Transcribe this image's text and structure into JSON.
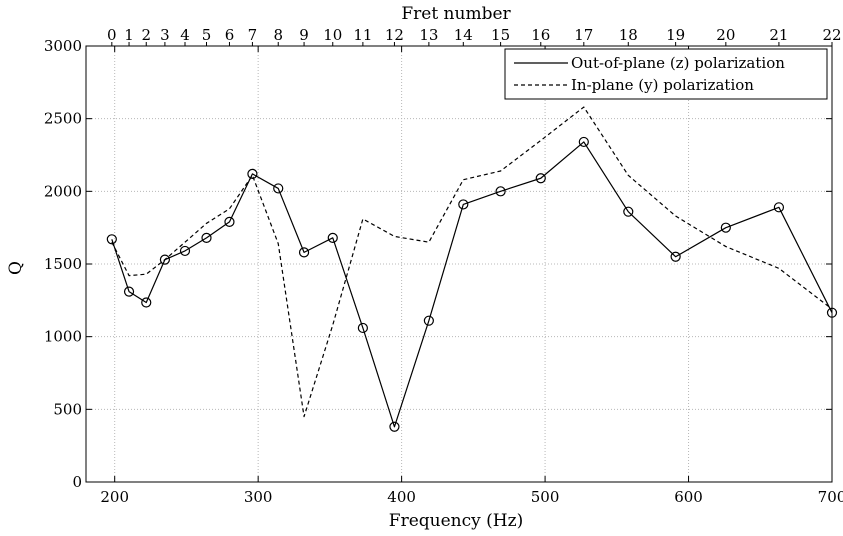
{
  "chart_data": {
    "type": "line",
    "xlabel": "Frequency (Hz)",
    "ylabel": "Q",
    "top_xlabel": "Fret number",
    "xlim": [
      180,
      700
    ],
    "ylim": [
      0,
      3000
    ],
    "xticks": [
      200,
      300,
      400,
      500,
      600,
      700
    ],
    "yticks": [
      0,
      500,
      1000,
      1500,
      2000,
      2500,
      3000
    ],
    "grid": true,
    "legend_position": "top-right",
    "frets": [
      0,
      1,
      2,
      3,
      4,
      5,
      6,
      7,
      8,
      9,
      10,
      11,
      12,
      13,
      14,
      15,
      16,
      17,
      18,
      19,
      20,
      21,
      22
    ],
    "x": [
      198,
      210,
      222,
      235,
      249,
      264,
      280,
      296,
      314,
      332,
      352,
      373,
      395,
      419,
      443,
      469,
      497,
      527,
      558,
      591,
      626,
      663,
      700
    ],
    "series": [
      {
        "name": "Out-of-plane (z) polarization",
        "style": "solid",
        "marker": "circle",
        "color": "#000000",
        "values": [
          1670,
          1310,
          1235,
          1530,
          1590,
          1680,
          1790,
          2120,
          2020,
          1580,
          1680,
          1060,
          380,
          1110,
          1910,
          2000,
          2090,
          2340,
          1860,
          1550,
          1750,
          1890,
          1165
        ]
      },
      {
        "name": "In-plane (y) polarization",
        "style": "dashed",
        "marker": "none",
        "color": "#000000",
        "values": [
          1650,
          1420,
          1430,
          1530,
          1650,
          1780,
          1880,
          2110,
          1640,
          450,
          1080,
          1810,
          1690,
          1650,
          2080,
          2140,
          2350,
          2580,
          2110,
          1830,
          1620,
          1470,
          1190
        ]
      }
    ]
  }
}
